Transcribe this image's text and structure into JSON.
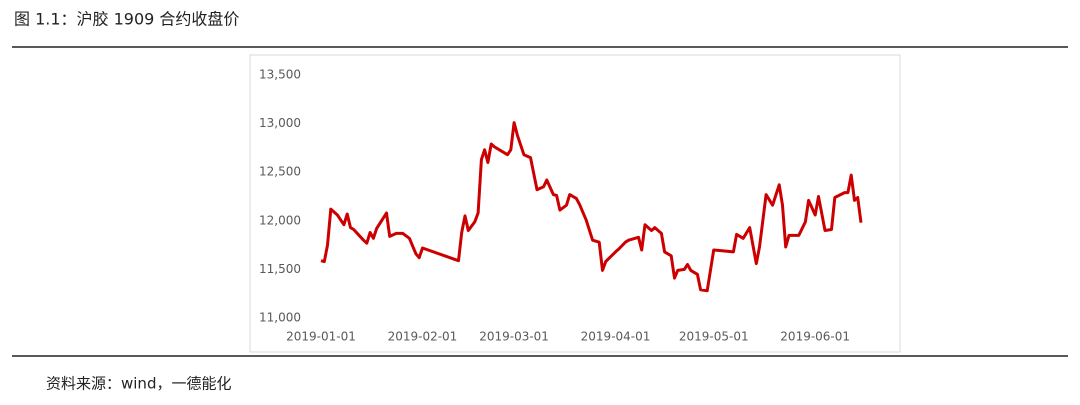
{
  "chart_data": {
    "type": "line",
    "title": "图 1.1：沪胶 1909 合约收盘价",
    "source": "资料来源：wind，一德能化",
    "x": [
      "2019-01-01",
      "2019-01-02",
      "2019-01-03",
      "2019-01-04",
      "2019-01-06",
      "2019-01-07",
      "2019-01-08",
      "2019-01-09",
      "2019-01-10",
      "2019-01-11",
      "2019-01-14",
      "2019-01-15",
      "2019-01-16",
      "2019-01-17",
      "2019-01-18",
      "2019-01-21",
      "2019-01-22",
      "2019-01-24",
      "2019-01-26",
      "2019-01-28",
      "2019-01-30",
      "2019-01-31",
      "2019-02-01",
      "2019-02-12",
      "2019-02-13",
      "2019-02-14",
      "2019-02-15",
      "2019-02-17",
      "2019-02-18",
      "2019-02-19",
      "2019-02-20",
      "2019-02-21",
      "2019-02-22",
      "2019-02-23",
      "2019-02-25",
      "2019-02-27",
      "2019-02-28",
      "2019-03-01",
      "2019-03-02",
      "2019-03-04",
      "2019-03-06",
      "2019-03-08",
      "2019-03-10",
      "2019-03-11",
      "2019-03-13",
      "2019-03-14",
      "2019-03-15",
      "2019-03-17",
      "2019-03-18",
      "2019-03-20",
      "2019-03-21",
      "2019-03-23",
      "2019-03-25",
      "2019-03-27",
      "2019-03-28",
      "2019-03-29",
      "2019-04-01",
      "2019-04-02",
      "2019-04-04",
      "2019-04-05",
      "2019-04-08",
      "2019-04-09",
      "2019-04-10",
      "2019-04-12",
      "2019-04-13",
      "2019-04-15",
      "2019-04-16",
      "2019-04-18",
      "2019-04-19",
      "2019-04-20",
      "2019-04-22",
      "2019-04-23",
      "2019-04-24",
      "2019-04-26",
      "2019-04-27",
      "2019-04-29",
      "2019-05-01",
      "2019-05-04",
      "2019-05-07",
      "2019-05-08",
      "2019-05-10",
      "2019-05-12",
      "2019-05-14",
      "2019-05-15",
      "2019-05-17",
      "2019-05-19",
      "2019-05-21",
      "2019-05-22",
      "2019-05-23",
      "2019-05-24",
      "2019-05-27",
      "2019-05-29",
      "2019-05-30",
      "2019-06-01",
      "2019-06-02",
      "2019-06-04",
      "2019-06-06",
      "2019-06-07",
      "2019-06-10",
      "2019-06-11",
      "2019-06-12",
      "2019-06-13",
      "2019-06-14",
      "2019-06-15"
    ],
    "series": [
      {
        "name": "沪胶1909",
        "color": "#cc0000",
        "values": [
          11590,
          11580,
          11750,
          12120,
          12060,
          12010,
          11960,
          12070,
          11930,
          11910,
          11800,
          11770,
          11880,
          11820,
          11920,
          12080,
          11840,
          11870,
          11870,
          11820,
          11660,
          11620,
          11720,
          11590,
          11880,
          12050,
          11900,
          11990,
          12080,
          12630,
          12730,
          12600,
          12790,
          12760,
          12720,
          12680,
          12730,
          13010,
          12880,
          12680,
          12650,
          12320,
          12350,
          12420,
          12270,
          12260,
          12110,
          12160,
          12270,
          12230,
          12170,
          12010,
          11800,
          11780,
          11490,
          11580,
          11680,
          11710,
          11780,
          11800,
          11830,
          11700,
          11960,
          11900,
          11930,
          11870,
          11680,
          11640,
          11410,
          11490,
          11500,
          11550,
          11490,
          11450,
          11290,
          11280,
          11700,
          11690,
          11680,
          11860,
          11820,
          11930,
          11560,
          11730,
          12270,
          12160,
          12370,
          12160,
          11730,
          11850,
          11850,
          11990,
          12210,
          12060,
          12250,
          11900,
          11910,
          12240,
          12290,
          12290,
          12470,
          12210,
          12240,
          11980
        ]
      }
    ],
    "xlim": [
      "2019-01-01",
      "2019-06-15"
    ],
    "xticks": [
      "2019-01-01",
      "2019-02-01",
      "2019-03-01",
      "2019-04-01",
      "2019-05-01",
      "2019-06-01"
    ],
    "ylim": [
      11000,
      13500
    ],
    "yticks": [
      {
        "value": 11000,
        "label": "11,000"
      },
      {
        "value": 11500,
        "label": "11,500"
      },
      {
        "value": 12000,
        "label": "12,000"
      },
      {
        "value": 12500,
        "label": "12,500"
      },
      {
        "value": 13000,
        "label": "13,000"
      },
      {
        "value": 13500,
        "label": "13,500"
      }
    ],
    "grid": false
  }
}
